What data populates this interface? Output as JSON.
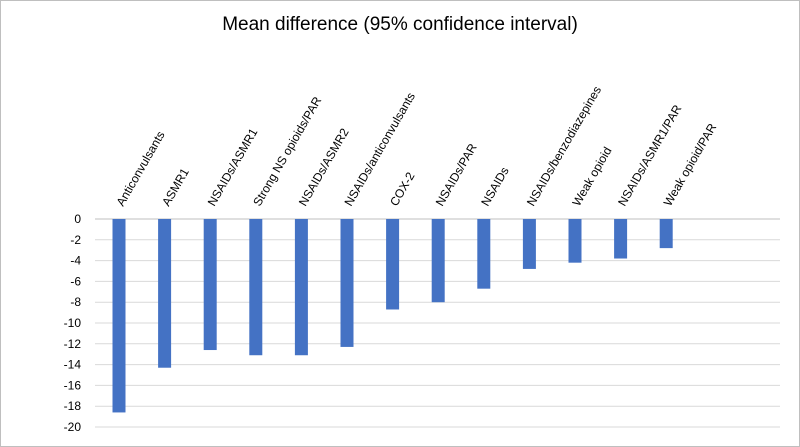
{
  "chart_data": {
    "type": "bar",
    "title": "Mean difference (95% confidence interval)",
    "xlabel": "",
    "ylabel": "",
    "ylim": [
      -20,
      0
    ],
    "ytick_step": 2,
    "grid": true,
    "bar_color": "#4472C4",
    "categories": [
      "Anticonvulsants",
      "ASMR1",
      "NSAIDs/ASMR1",
      "Strong NS opioids/PAR",
      "NSAIDs/ASMR2",
      "NSAIDs/anticonvulsants",
      "COX-2",
      "NSAIDs/PAR",
      "NSAIDs",
      "NSAIDs/benzodiazepines",
      "Weak opioid",
      "NSAIDs/ASMR1/PAR",
      "Weak opioid/PAR"
    ],
    "values": [
      -18.6,
      -14.3,
      -12.6,
      -13.1,
      -13.1,
      -12.3,
      -8.7,
      -8.0,
      -6.7,
      -4.8,
      -4.2,
      -3.8,
      -2.8
    ]
  }
}
